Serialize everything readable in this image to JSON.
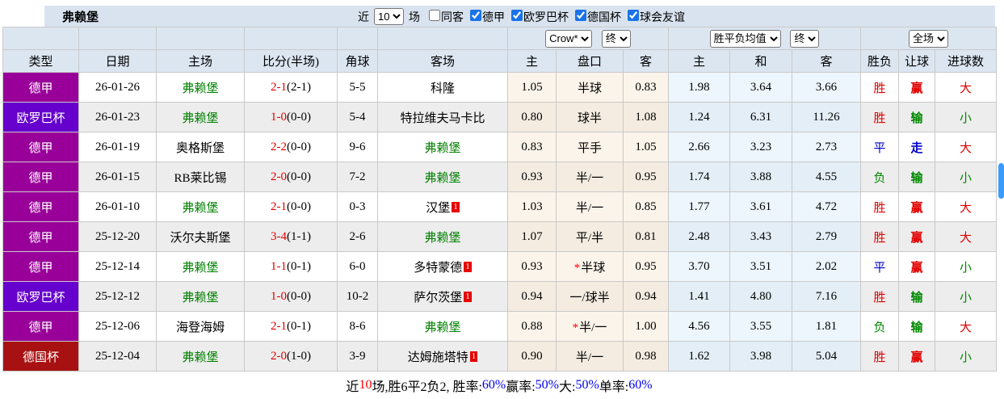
{
  "title": "弗赖堡",
  "toolbar": {
    "near_label": "近",
    "games_count": "10",
    "games_label": "场",
    "checkboxes": [
      {
        "label": "同客",
        "checked": false
      },
      {
        "label": "德甲",
        "checked": true
      },
      {
        "label": "欧罗巴杯",
        "checked": true
      },
      {
        "label": "德国杯",
        "checked": true
      },
      {
        "label": "球会友谊",
        "checked": true
      }
    ]
  },
  "controls": {
    "odds_company": "Crow*",
    "odds_time": "终",
    "avg_type": "胜平负均值",
    "avg_time": "终",
    "scope": "全场"
  },
  "columns": [
    "类型",
    "日期",
    "主场",
    "比分(半场)",
    "角球",
    "客场",
    "主",
    "盘口",
    "客",
    "主",
    "和",
    "客",
    "胜负",
    "让球",
    "进球数"
  ],
  "league_colors": {
    "德甲": "#990099",
    "欧罗巴杯": "#6600cc",
    "德国杯": "#a81111"
  },
  "rows": [
    {
      "type": "德甲",
      "type_bg": "#990099",
      "date": "26-01-26",
      "home": "弗赖堡",
      "home_self": true,
      "score": "2-1",
      "half": "(2-1)",
      "corners": "5-5",
      "away": "科隆",
      "away_self": false,
      "away_badge": "",
      "odds_home": "1.05",
      "handicap_star": "",
      "handicap": "半球",
      "odds_away": "0.83",
      "avg_home": "1.98",
      "avg_draw": "3.64",
      "avg_away": "3.66",
      "result": "胜",
      "result_color": "red",
      "let_result": "赢",
      "let_color": "red",
      "goals": "大",
      "goals_color": "red"
    },
    {
      "type": "欧罗巴杯",
      "type_bg": "#6600cc",
      "date": "26-01-23",
      "home": "弗赖堡",
      "home_self": true,
      "score": "1-0",
      "half": "(0-0)",
      "corners": "5-4",
      "away": "特拉维夫马卡比",
      "away_self": false,
      "away_badge": "",
      "odds_home": "0.80",
      "handicap_star": "",
      "handicap": "球半",
      "odds_away": "1.08",
      "avg_home": "1.24",
      "avg_draw": "6.31",
      "avg_away": "11.26",
      "result": "胜",
      "result_color": "red",
      "let_result": "输",
      "let_color": "green",
      "goals": "小",
      "goals_color": "green"
    },
    {
      "type": "德甲",
      "type_bg": "#990099",
      "date": "26-01-19",
      "home": "奥格斯堡",
      "home_self": false,
      "score": "2-2",
      "half": "(0-0)",
      "corners": "9-6",
      "away": "弗赖堡",
      "away_self": true,
      "away_badge": "",
      "odds_home": "0.83",
      "handicap_star": "",
      "handicap": "平手",
      "odds_away": "1.05",
      "avg_home": "2.66",
      "avg_draw": "3.23",
      "avg_away": "2.73",
      "result": "平",
      "result_color": "blue",
      "let_result": "走",
      "let_color": "blue",
      "goals": "大",
      "goals_color": "red"
    },
    {
      "type": "德甲",
      "type_bg": "#990099",
      "date": "26-01-15",
      "home": "RB莱比锡",
      "home_self": false,
      "score": "2-0",
      "half": "(0-0)",
      "corners": "7-2",
      "away": "弗赖堡",
      "away_self": true,
      "away_badge": "",
      "odds_home": "0.93",
      "handicap_star": "",
      "handicap": "半/一",
      "odds_away": "0.95",
      "avg_home": "1.74",
      "avg_draw": "3.88",
      "avg_away": "4.55",
      "result": "负",
      "result_color": "green",
      "let_result": "输",
      "let_color": "green",
      "goals": "小",
      "goals_color": "green"
    },
    {
      "type": "德甲",
      "type_bg": "#990099",
      "date": "26-01-10",
      "home": "弗赖堡",
      "home_self": true,
      "score": "2-1",
      "half": "(0-0)",
      "corners": "0-3",
      "away": "汉堡",
      "away_self": false,
      "away_badge": "1",
      "odds_home": "1.03",
      "handicap_star": "",
      "handicap": "半/一",
      "odds_away": "0.85",
      "avg_home": "1.77",
      "avg_draw": "3.61",
      "avg_away": "4.72",
      "result": "胜",
      "result_color": "red",
      "let_result": "赢",
      "let_color": "red",
      "goals": "大",
      "goals_color": "red"
    },
    {
      "type": "德甲",
      "type_bg": "#990099",
      "date": "25-12-20",
      "home": "沃尔夫斯堡",
      "home_self": false,
      "score": "3-4",
      "half": "(1-1)",
      "corners": "2-6",
      "away": "弗赖堡",
      "away_self": true,
      "away_badge": "",
      "odds_home": "1.07",
      "handicap_star": "",
      "handicap": "平/半",
      "odds_away": "0.81",
      "avg_home": "2.48",
      "avg_draw": "3.43",
      "avg_away": "2.79",
      "result": "胜",
      "result_color": "red",
      "let_result": "赢",
      "let_color": "red",
      "goals": "大",
      "goals_color": "red"
    },
    {
      "type": "德甲",
      "type_bg": "#990099",
      "date": "25-12-14",
      "home": "弗赖堡",
      "home_self": true,
      "score": "1-1",
      "half": "(0-1)",
      "corners": "6-0",
      "away": "多特蒙德",
      "away_self": false,
      "away_badge": "1",
      "odds_home": "0.93",
      "handicap_star": "*",
      "handicap": "半球",
      "odds_away": "0.95",
      "avg_home": "3.70",
      "avg_draw": "3.51",
      "avg_away": "2.02",
      "result": "平",
      "result_color": "blue",
      "let_result": "赢",
      "let_color": "red",
      "goals": "小",
      "goals_color": "green"
    },
    {
      "type": "欧罗巴杯",
      "type_bg": "#6600cc",
      "date": "25-12-12",
      "home": "弗赖堡",
      "home_self": true,
      "score": "1-0",
      "half": "(0-0)",
      "corners": "10-2",
      "away": "萨尔茨堡",
      "away_self": false,
      "away_badge": "1",
      "odds_home": "0.94",
      "handicap_star": "",
      "handicap": "一/球半",
      "odds_away": "0.94",
      "avg_home": "1.41",
      "avg_draw": "4.80",
      "avg_away": "7.16",
      "result": "胜",
      "result_color": "red",
      "let_result": "输",
      "let_color": "green",
      "goals": "小",
      "goals_color": "green"
    },
    {
      "type": "德甲",
      "type_bg": "#990099",
      "date": "25-12-06",
      "home": "海登海姆",
      "home_self": false,
      "score": "2-1",
      "half": "(0-1)",
      "corners": "8-6",
      "away": "弗赖堡",
      "away_self": true,
      "away_badge": "",
      "odds_home": "0.88",
      "handicap_star": "*",
      "handicap": "半/一",
      "odds_away": "1.00",
      "avg_home": "4.56",
      "avg_draw": "3.55",
      "avg_away": "1.81",
      "result": "负",
      "result_color": "green",
      "let_result": "输",
      "let_color": "green",
      "goals": "大",
      "goals_color": "red"
    },
    {
      "type": "德国杯",
      "type_bg": "#a81111",
      "date": "25-12-04",
      "home": "弗赖堡",
      "home_self": true,
      "score": "2-0",
      "half": "(1-0)",
      "corners": "3-9",
      "away": "达姆施塔特",
      "away_self": false,
      "away_badge": "1",
      "odds_home": "0.90",
      "handicap_star": "",
      "handicap": "半/一",
      "odds_away": "0.98",
      "avg_home": "1.62",
      "avg_draw": "3.98",
      "avg_away": "5.04",
      "result": "胜",
      "result_color": "red",
      "let_result": "赢",
      "let_color": "red",
      "goals": "小",
      "goals_color": "green"
    }
  ],
  "summary": {
    "parts": [
      {
        "text": "近",
        "color": "black"
      },
      {
        "text": "10",
        "color": "red"
      },
      {
        "text": "场,胜6平2负2, 胜率:",
        "color": "black"
      },
      {
        "text": "60%",
        "color": "blue"
      },
      {
        "text": " 赢率:",
        "color": "black"
      },
      {
        "text": "50%",
        "color": "blue"
      },
      {
        "text": " 大:",
        "color": "black"
      },
      {
        "text": "50%",
        "color": "blue"
      },
      {
        "text": " 单率:",
        "color": "black"
      },
      {
        "text": "60%",
        "color": "blue"
      }
    ]
  }
}
